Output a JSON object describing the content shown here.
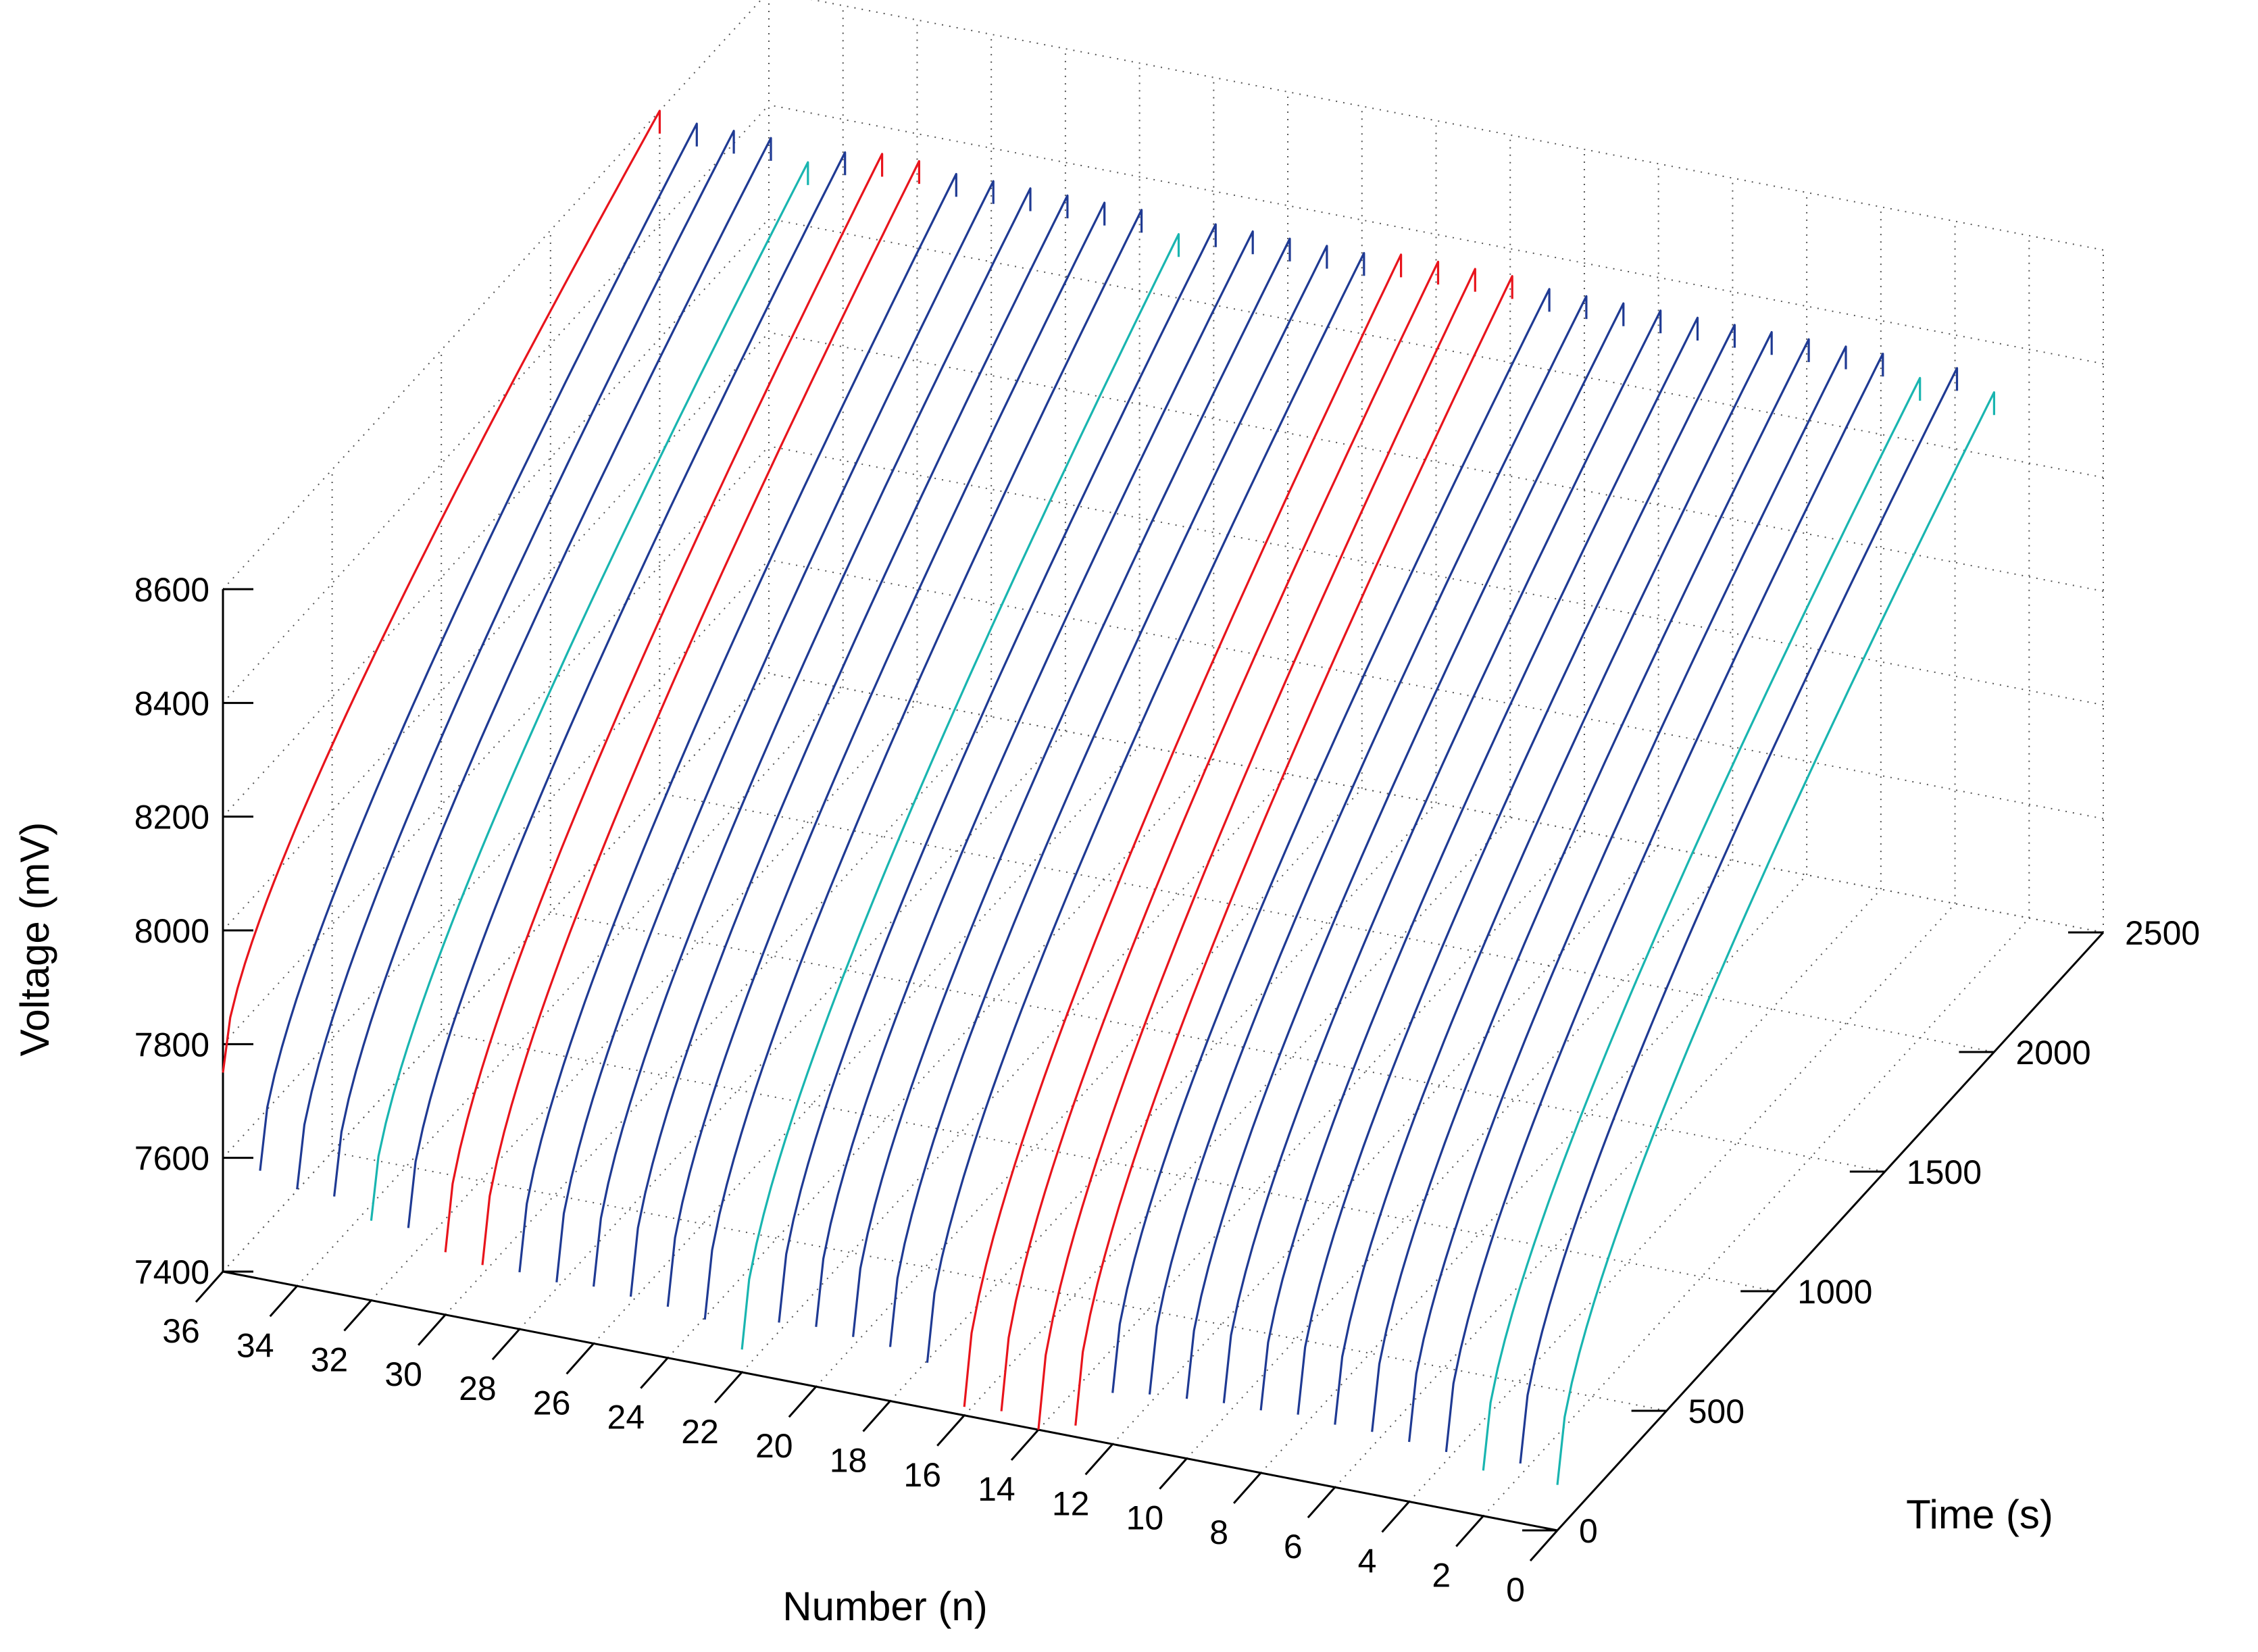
{
  "chart_data": {
    "type": "line",
    "projection": "3d",
    "grid": true,
    "title": "",
    "xlabel": "Number (n)",
    "ylabel": "Time (s)",
    "zlabel": "Voltage (mV)",
    "xlim": [
      0,
      36
    ],
    "ylim": [
      0,
      2500
    ],
    "zlim": [
      7400,
      8600
    ],
    "x_ticks": [
      "0",
      "2",
      "4",
      "6",
      "8",
      "10",
      "12",
      "14",
      "16",
      "18",
      "20",
      "22",
      "24",
      "26",
      "28",
      "30",
      "32",
      "34",
      "36"
    ],
    "y_ticks": [
      "0",
      "500",
      "1000",
      "1500",
      "2000",
      "2500"
    ],
    "z_ticks": [
      "7400",
      "7600",
      "7800",
      "8000",
      "8200",
      "8400",
      "8600"
    ],
    "colors": {
      "normal": "#1f3a93",
      "highlight_red": "#e8141c",
      "highlight_cyan": "#19b5b0"
    },
    "curve_model": "voltage rises concavely from start_voltage at t=0 to end_voltage at t=end_time (values in mV and s)",
    "series": [
      {
        "number": 0,
        "color": "cyan",
        "start_voltage": 7480,
        "end_voltage": 8560,
        "end_time": 2000
      },
      {
        "number": 1,
        "color": "blue",
        "start_voltage": 7505,
        "end_voltage": 8590,
        "end_time": 2000
      },
      {
        "number": 2,
        "color": "cyan",
        "start_voltage": 7480,
        "end_voltage": 8560,
        "end_time": 2000
      },
      {
        "number": 3,
        "color": "blue",
        "start_voltage": 7500,
        "end_voltage": 8590,
        "end_time": 2000
      },
      {
        "number": 4,
        "color": "blue",
        "start_voltage": 7505,
        "end_voltage": 8590,
        "end_time": 2000
      },
      {
        "number": 5,
        "color": "blue",
        "start_voltage": 7510,
        "end_voltage": 8590,
        "end_time": 2000
      },
      {
        "number": 6,
        "color": "blue",
        "start_voltage": 7510,
        "end_voltage": 8590,
        "end_time": 2000
      },
      {
        "number": 7,
        "color": "blue",
        "start_voltage": 7515,
        "end_voltage": 8590,
        "end_time": 2000
      },
      {
        "number": 8,
        "color": "blue",
        "start_voltage": 7510,
        "end_voltage": 8590,
        "end_time": 2000
      },
      {
        "number": 9,
        "color": "blue",
        "start_voltage": 7510,
        "end_voltage": 8590,
        "end_time": 2000
      },
      {
        "number": 10,
        "color": "blue",
        "start_voltage": 7505,
        "end_voltage": 8590,
        "end_time": 2000
      },
      {
        "number": 11,
        "color": "blue",
        "start_voltage": 7500,
        "end_voltage": 8590,
        "end_time": 2000
      },
      {
        "number": 12,
        "color": "blue",
        "start_voltage": 7490,
        "end_voltage": 8590,
        "end_time": 2000
      },
      {
        "number": 13,
        "color": "red",
        "start_voltage": 7420,
        "end_voltage": 8600,
        "end_time": 2000
      },
      {
        "number": 14,
        "color": "red",
        "start_voltage": 7400,
        "end_voltage": 8600,
        "end_time": 2000
      },
      {
        "number": 15,
        "color": "red",
        "start_voltage": 7420,
        "end_voltage": 8600,
        "end_time": 2000
      },
      {
        "number": 16,
        "color": "red",
        "start_voltage": 7415,
        "end_voltage": 8600,
        "end_time": 2000
      },
      {
        "number": 17,
        "color": "blue",
        "start_voltage": 7480,
        "end_voltage": 8590,
        "end_time": 2000
      },
      {
        "number": 18,
        "color": "blue",
        "start_voltage": 7495,
        "end_voltage": 8590,
        "end_time": 2000
      },
      {
        "number": 19,
        "color": "blue",
        "start_voltage": 7500,
        "end_voltage": 8590,
        "end_time": 2000
      },
      {
        "number": 20,
        "color": "blue",
        "start_voltage": 7505,
        "end_voltage": 8590,
        "end_time": 2000
      },
      {
        "number": 21,
        "color": "blue",
        "start_voltage": 7500,
        "end_voltage": 8590,
        "end_time": 2000
      },
      {
        "number": 22,
        "color": "cyan",
        "start_voltage": 7440,
        "end_voltage": 8560,
        "end_time": 2000
      },
      {
        "number": 23,
        "color": "blue",
        "start_voltage": 7480,
        "end_voltage": 8590,
        "end_time": 2000
      },
      {
        "number": 24,
        "color": "blue",
        "start_voltage": 7490,
        "end_voltage": 8590,
        "end_time": 2000
      },
      {
        "number": 25,
        "color": "blue",
        "start_voltage": 7495,
        "end_voltage": 8590,
        "end_time": 2000
      },
      {
        "number": 26,
        "color": "blue",
        "start_voltage": 7500,
        "end_voltage": 8590,
        "end_time": 2000
      },
      {
        "number": 27,
        "color": "blue",
        "start_voltage": 7495,
        "end_voltage": 8590,
        "end_time": 2000
      },
      {
        "number": 28,
        "color": "blue",
        "start_voltage": 7500,
        "end_voltage": 8590,
        "end_time": 2000
      },
      {
        "number": 29,
        "color": "red",
        "start_voltage": 7500,
        "end_voltage": 8600,
        "end_time": 2000
      },
      {
        "number": 30,
        "color": "red",
        "start_voltage": 7510,
        "end_voltage": 8600,
        "end_time": 2000
      },
      {
        "number": 31,
        "color": "blue",
        "start_voltage": 7540,
        "end_voltage": 8590,
        "end_time": 2000
      },
      {
        "number": 32,
        "color": "cyan",
        "start_voltage": 7540,
        "end_voltage": 8560,
        "end_time": 2000
      },
      {
        "number": 33,
        "color": "blue",
        "start_voltage": 7570,
        "end_voltage": 8590,
        "end_time": 2000
      },
      {
        "number": 34,
        "color": "blue",
        "start_voltage": 7570,
        "end_voltage": 8590,
        "end_time": 2000
      },
      {
        "number": 35,
        "color": "blue",
        "start_voltage": 7590,
        "end_voltage": 8590,
        "end_time": 2000
      },
      {
        "number": 36,
        "color": "red",
        "start_voltage": 7750,
        "end_voltage": 8600,
        "end_time": 2000
      }
    ]
  }
}
